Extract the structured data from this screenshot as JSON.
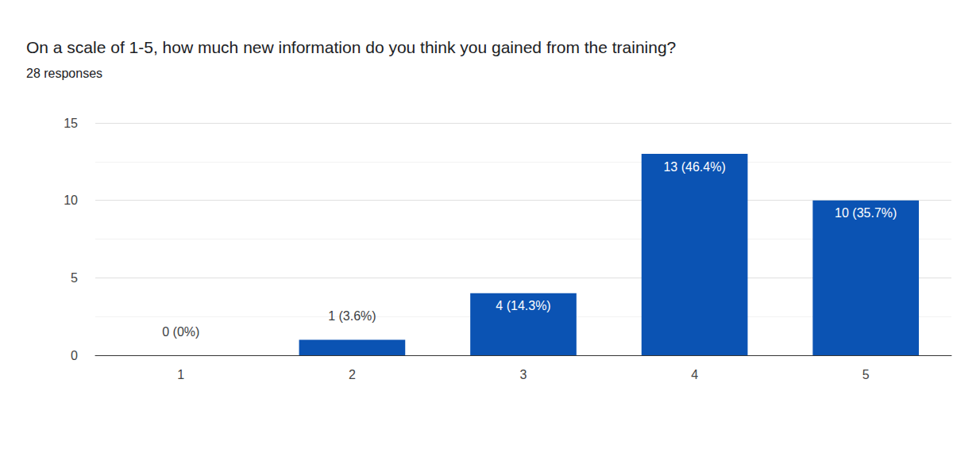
{
  "chart_data": {
    "type": "bar",
    "title": "On a scale of 1-5, how much new information do you think you gained from the training?",
    "subtitle": "28 responses",
    "categories": [
      "1",
      "2",
      "3",
      "4",
      "5"
    ],
    "values": [
      0,
      1,
      4,
      13,
      10
    ],
    "value_labels": [
      "0 (0%)",
      "1 (3.6%)",
      "4 (14.3%)",
      "13 (46.4%)",
      "10 (35.7%)"
    ],
    "color": "#0b53b3",
    "ylim": [
      0,
      15
    ],
    "yticks": [
      0,
      5,
      10,
      15
    ],
    "grid": true,
    "data_labels": true
  }
}
